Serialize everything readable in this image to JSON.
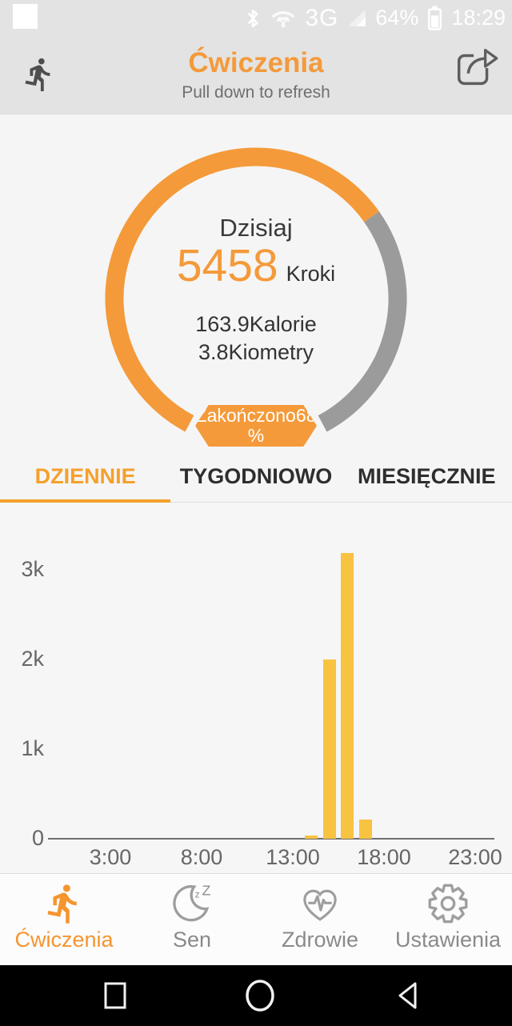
{
  "colors": {
    "accent_orange": "#F49A3A",
    "bar_yellow": "#F7C341",
    "ring_gray": "#9B9B9B",
    "tab_orange": "#F5A02C"
  },
  "status_bar": {
    "notification_icon": "white-square",
    "icons": [
      "bluetooth-icon",
      "wifi-icon",
      "signal-icon",
      "battery-icon"
    ],
    "network_type": "3G",
    "battery_percent": "64%",
    "time": "18:29"
  },
  "header": {
    "title": "Ćwiczenia",
    "subtitle": "Pull down to refresh",
    "left_icon": "runner-icon",
    "right_icon": "share-icon"
  },
  "summary": {
    "period_label": "Dzisiaj",
    "steps_value": "5458",
    "steps_unit": "Kroki",
    "calories_line": "163.9Kalorie",
    "distance_line": "3.8Kiometry",
    "badge_line1": "Zakończono68",
    "badge_line2": "%",
    "progress_percent": 68
  },
  "tabs": [
    {
      "label": "DZIENNIE",
      "active": true
    },
    {
      "label": "TYGODNIOWO",
      "active": false
    },
    {
      "label": "MIESIĘCZNIE",
      "active": false
    }
  ],
  "chart_data": {
    "type": "bar",
    "title": "",
    "xlabel": "hour of day",
    "ylabel": "steps",
    "ylim": [
      0,
      3500
    ],
    "grid": false,
    "bar_color": "#F7C341",
    "hours": [
      0,
      1,
      2,
      3,
      4,
      5,
      6,
      7,
      8,
      9,
      10,
      11,
      12,
      13,
      14,
      15,
      16,
      17,
      18,
      19,
      20,
      21,
      22,
      23
    ],
    "values": [
      0,
      0,
      0,
      0,
      0,
      0,
      0,
      0,
      0,
      0,
      0,
      0,
      0,
      0,
      40,
      2000,
      3190,
      210,
      0,
      0,
      0,
      0,
      0,
      0
    ],
    "y_ticks": [
      {
        "label": "0",
        "value": 0
      },
      {
        "label": "1k",
        "value": 1000
      },
      {
        "label": "2k",
        "value": 2000
      },
      {
        "label": "3k",
        "value": 3000
      }
    ],
    "x_ticks": [
      {
        "label": "3:00",
        "hour": 3
      },
      {
        "label": "8:00",
        "hour": 8
      },
      {
        "label": "13:00",
        "hour": 13
      },
      {
        "label": "18:00",
        "hour": 18
      },
      {
        "label": "23:00",
        "hour": 23
      }
    ]
  },
  "bottom_nav": [
    {
      "label": "Ćwiczenia",
      "icon": "runner-icon",
      "active": true
    },
    {
      "label": "Sen",
      "icon": "moon-icon",
      "active": false
    },
    {
      "label": "Zdrowie",
      "icon": "heart-pulse-icon",
      "active": false
    },
    {
      "label": "Ustawienia",
      "icon": "gear-icon",
      "active": false
    }
  ],
  "android_nav": {
    "buttons": [
      "recents-square-icon",
      "home-circle-icon",
      "back-triangle-icon"
    ]
  }
}
